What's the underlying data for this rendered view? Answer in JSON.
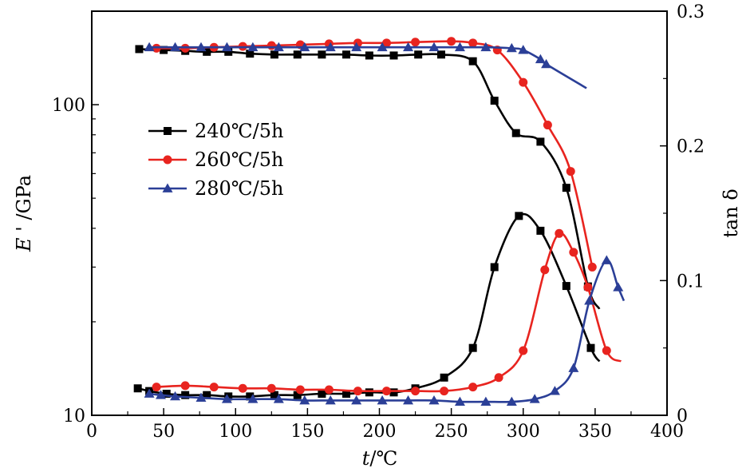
{
  "chart_data": {
    "type": "line",
    "xlabel_var": "t",
    "xlabel_unit": "/℃",
    "ylabel_left_var": "E ' ",
    "ylabel_left_unit": "/GPa",
    "ylabel_right": "tan δ",
    "xlim": [
      0,
      400
    ],
    "ylim_left": [
      10,
      200
    ],
    "ylim_left_scale": "log",
    "ylim_right": [
      0,
      0.3
    ],
    "x_ticks": [
      "0",
      "50",
      "100",
      "150",
      "200",
      "250",
      "300",
      "350",
      "400"
    ],
    "y_left_ticks": [
      "10",
      "100"
    ],
    "y_right_ticks": [
      "0",
      "0.1",
      "0.2",
      "0.3"
    ],
    "grid": false,
    "legend_position": "upper-left",
    "series": [
      {
        "name": "240℃/5h",
        "color": "#000000",
        "marker": "square",
        "modulus": {
          "x": [
            33,
            50,
            65,
            80,
            95,
            110,
            127,
            143,
            160,
            177,
            193,
            210,
            227,
            243,
            265,
            280,
            295,
            312,
            330,
            345
          ],
          "y": [
            151,
            150,
            149,
            148,
            148,
            146,
            145,
            145,
            145,
            145,
            144,
            144,
            145,
            145,
            138,
            103,
            81,
            76,
            54,
            26
          ]
        },
        "modulus_line_end": [
          353,
          22
        ],
        "tan_delta": {
          "x": [
            32,
            40,
            52,
            65,
            80,
            95,
            110,
            127,
            143,
            160,
            177,
            193,
            210,
            225,
            245,
            265,
            280,
            297,
            312,
            330,
            347
          ],
          "y": [
            0.02,
            0.018,
            0.016,
            0.015,
            0.015,
            0.014,
            0.014,
            0.015,
            0.015,
            0.016,
            0.016,
            0.017,
            0.017,
            0.02,
            0.028,
            0.05,
            0.11,
            0.148,
            0.137,
            0.096,
            0.05
          ]
        },
        "tan_delta_line_end": [
          353,
          0.04
        ]
      },
      {
        "name": "260℃/5h",
        "color": "#e8241f",
        "marker": "circle",
        "modulus": {
          "x": [
            45,
            65,
            85,
            105,
            125,
            145,
            165,
            185,
            205,
            225,
            250,
            265,
            282,
            300,
            317,
            333,
            348
          ],
          "y": [
            152,
            152,
            153,
            154,
            155,
            156,
            157,
            158,
            158,
            159,
            160,
            158,
            150,
            118,
            86,
            61,
            30
          ]
        },
        "tan_delta": {
          "x": [
            45,
            65,
            85,
            105,
            125,
            145,
            165,
            185,
            205,
            225,
            245,
            265,
            283,
            300,
            315,
            325,
            335,
            345,
            358
          ],
          "y": [
            0.021,
            0.022,
            0.021,
            0.02,
            0.02,
            0.019,
            0.019,
            0.018,
            0.018,
            0.018,
            0.018,
            0.021,
            0.028,
            0.048,
            0.108,
            0.135,
            0.121,
            0.095,
            0.048
          ]
        },
        "tan_delta_line_end": [
          368,
          0.04
        ]
      },
      {
        "name": "280℃/5h",
        "color": "#2b3f97",
        "marker": "triangle",
        "modulus": {
          "x": [
            40,
            58,
            76,
            94,
            112,
            130,
            148,
            166,
            184,
            202,
            220,
            238,
            256,
            274,
            292,
            300,
            312,
            316
          ],
          "y": [
            153,
            153,
            153,
            153,
            153,
            153,
            153,
            153,
            153,
            153,
            153,
            153,
            153,
            153,
            152,
            150,
            140,
            135
          ]
        },
        "modulus_line_end": [
          344,
          113
        ],
        "tan_delta": {
          "x": [
            40,
            48,
            58,
            76,
            94,
            112,
            130,
            148,
            166,
            184,
            202,
            220,
            238,
            256,
            274,
            292,
            308,
            322,
            335,
            346,
            358,
            366
          ],
          "y": [
            0.016,
            0.015,
            0.014,
            0.013,
            0.012,
            0.012,
            0.012,
            0.011,
            0.011,
            0.011,
            0.011,
            0.011,
            0.011,
            0.01,
            0.01,
            0.01,
            0.012,
            0.018,
            0.035,
            0.085,
            0.115,
            0.095
          ]
        },
        "tan_delta_line_end": [
          370,
          0.085
        ]
      }
    ]
  }
}
